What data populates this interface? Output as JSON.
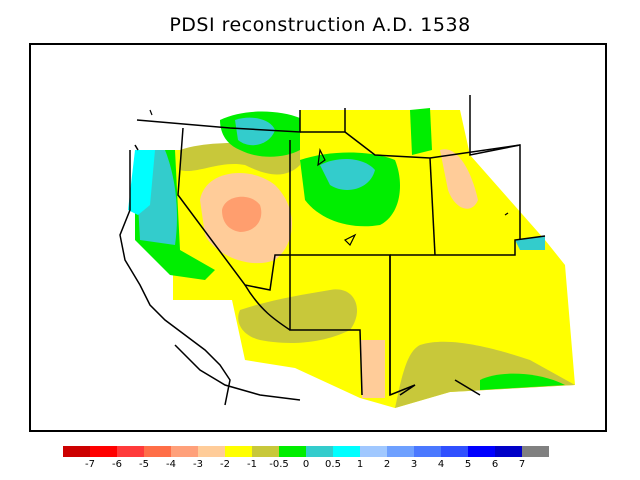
{
  "title": "PDSI reconstruction A.D. 1538",
  "colorbar": {
    "colors": [
      "#cc0000",
      "#ff0000",
      "#ff3a3a",
      "#ff6e47",
      "#ffa07a",
      "#ffcc99",
      "#ffff00",
      "#c8c83a",
      "#00ee00",
      "#33cccc",
      "#00ffff",
      "#a0c8ff",
      "#6ea0ff",
      "#4a78ff",
      "#3050ff",
      "#0000ff",
      "#0000c8",
      "#808080"
    ],
    "tick_labels": [
      "-7",
      "-6",
      "-5",
      "-4",
      "-3",
      "-2",
      "-1",
      "-0.5",
      "0",
      "0.5",
      "1",
      "2",
      "3",
      "4",
      "5",
      "6",
      "7"
    ]
  },
  "map_region": "Western United States"
}
